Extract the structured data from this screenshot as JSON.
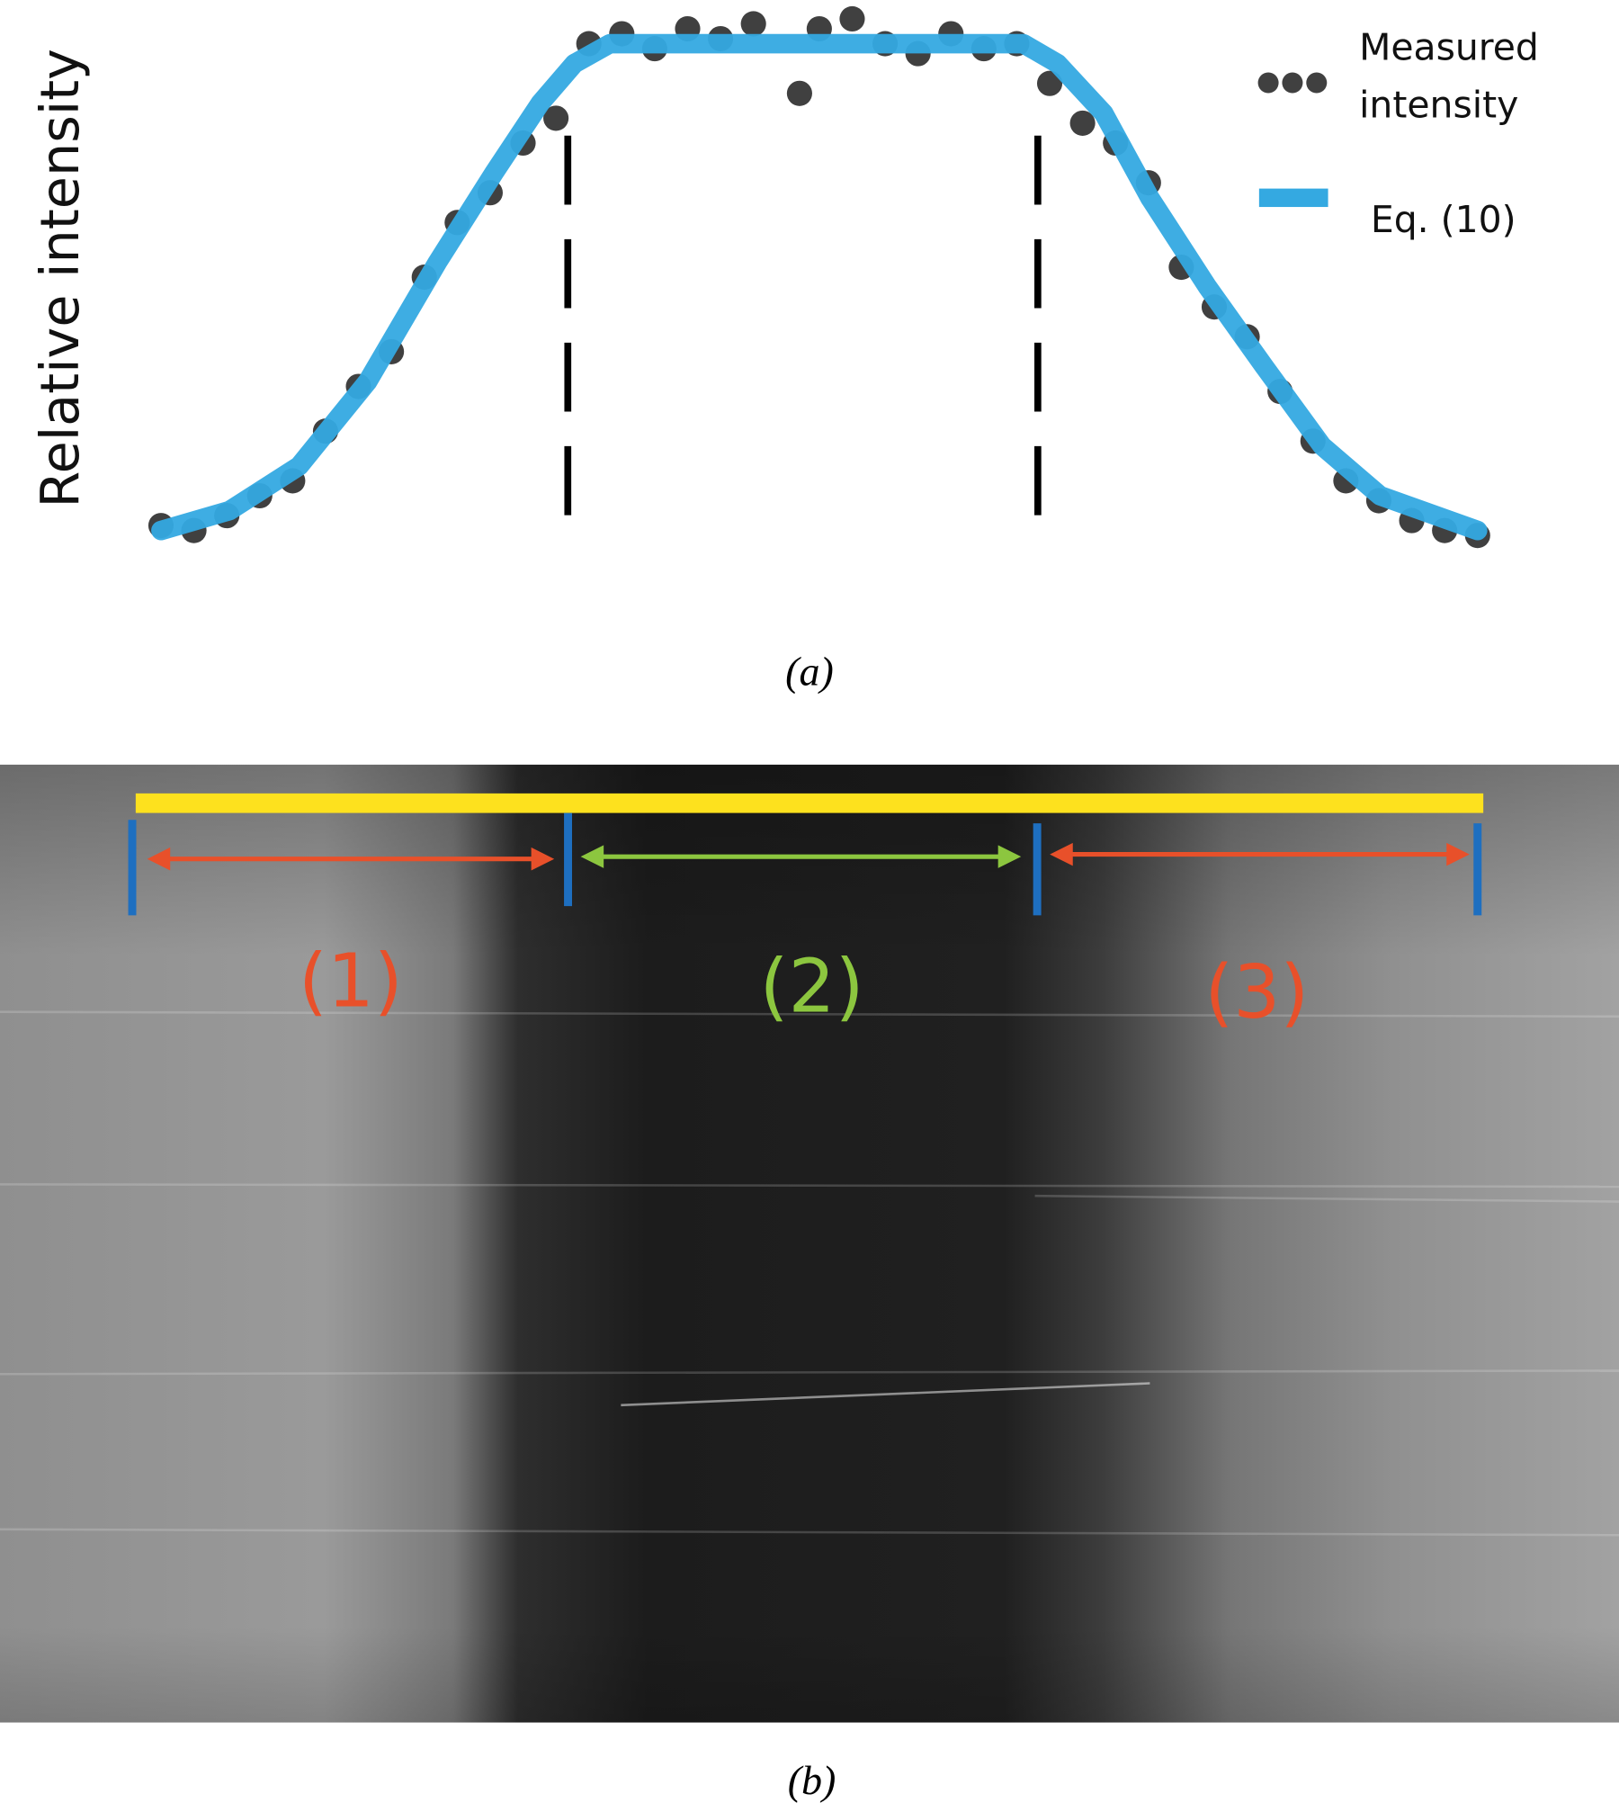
{
  "chart_data": {
    "type": "line",
    "y_label": "Relative intensity",
    "caption": "(a)",
    "xlim": [
      0,
      100
    ],
    "ylim": [
      0,
      1
    ],
    "boundaries": [
      30.9,
      66.6
    ],
    "series": [
      {
        "name": "Measured intensity",
        "color": "#404040",
        "marker": "dots",
        "x": [
          0,
          2.5,
          5,
          7.5,
          10,
          12.5,
          15,
          17.5,
          20,
          22.5,
          25,
          27.5,
          30,
          32.5,
          35,
          37.5,
          40,
          42.5,
          45,
          48.5,
          50,
          52.5,
          55,
          57.5,
          60,
          62.5,
          65,
          67.5,
          70,
          72.5,
          75,
          77.5,
          80,
          82.5,
          85,
          87.5,
          90,
          92.5,
          95,
          97.5,
          100
        ],
        "values": [
          0.03,
          0.02,
          0.05,
          0.09,
          0.12,
          0.22,
          0.31,
          0.38,
          0.53,
          0.64,
          0.7,
          0.8,
          0.85,
          1.0,
          1.02,
          0.99,
          1.03,
          1.01,
          1.04,
          0.9,
          1.03,
          1.05,
          1.0,
          0.98,
          1.02,
          0.99,
          1.0,
          0.92,
          0.84,
          0.8,
          0.72,
          0.55,
          0.47,
          0.41,
          0.3,
          0.2,
          0.12,
          0.08,
          0.04,
          0.02,
          0.01
        ]
      },
      {
        "name": "Eq. (10)",
        "color": "#34a9e1",
        "marker": "line",
        "x": [
          0,
          5.2,
          10.5,
          15.7,
          21.0,
          25.3,
          28.8,
          31.4,
          34.1,
          65.5,
          68.1,
          71.6,
          75.1,
          79.5,
          83.8,
          88.2,
          92.6,
          100
        ],
        "values": [
          0.02,
          0.06,
          0.15,
          0.32,
          0.56,
          0.74,
          0.88,
          0.96,
          1.0,
          1.0,
          0.96,
          0.86,
          0.69,
          0.51,
          0.35,
          0.19,
          0.09,
          0.02
        ]
      }
    ]
  },
  "image_panel": {
    "caption": "(b)",
    "regions": [
      "(1)",
      "(2)",
      "(3)"
    ]
  }
}
